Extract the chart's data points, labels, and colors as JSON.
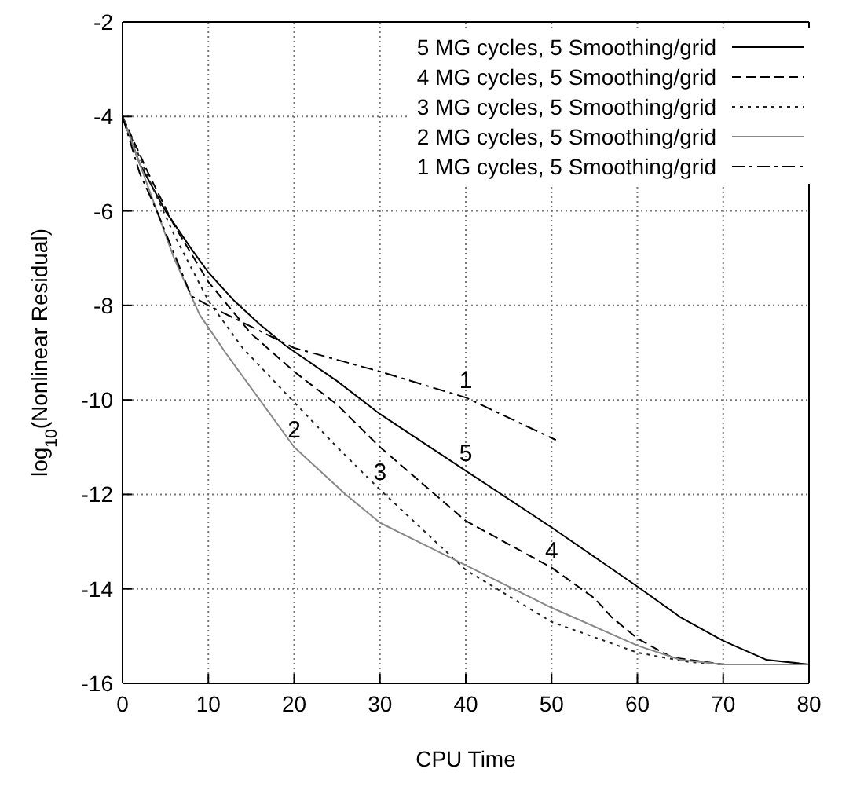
{
  "chart_data": {
    "type": "line",
    "xlabel": "CPU Time",
    "ylabel": "log$_{10}$(Nonlinear Residual)",
    "xlim": [
      0,
      80
    ],
    "xticks": [
      0,
      10,
      20,
      30,
      40,
      50,
      60,
      70,
      80
    ],
    "ylim": [
      -16,
      -2
    ],
    "yticks": [
      -16,
      -14,
      -12,
      -10,
      -8,
      -6,
      -4,
      -2
    ],
    "grid": true,
    "legend": "top right",
    "marker": "none",
    "series": [
      {
        "name": "5 MG cycles, 5 Smoothing/grid",
        "color": "#000000",
        "line_style": "solid",
        "x": [
          0,
          2,
          5,
          8,
          10,
          13,
          16,
          19,
          25,
          30,
          40,
          50,
          60,
          65,
          70,
          75,
          80
        ],
        "values": [
          -4,
          -5,
          -6,
          -6.8,
          -7.3,
          -7.9,
          -8.4,
          -8.85,
          -9.6,
          -10.3,
          -11.5,
          -12.7,
          -13.95,
          -14.6,
          -15.1,
          -15.5,
          -15.6
        ]
      },
      {
        "name": "4 MG cycles, 5 Smoothing/grid",
        "color": "#000000",
        "line_style": "dashed",
        "x": [
          0,
          3,
          6,
          10,
          15,
          20,
          25,
          30,
          40,
          50,
          55,
          57,
          60,
          64,
          70,
          80
        ],
        "values": [
          -4,
          -5.2,
          -6.3,
          -7.5,
          -8.6,
          -9.4,
          -10.1,
          -11,
          -12.56,
          -13.55,
          -14.2,
          -14.6,
          -15.05,
          -15.45,
          -15.6,
          -15.6
        ]
      },
      {
        "name": "3 MG cycles, 5 Smoothing/grid",
        "color": "#222222",
        "line_style": "dotted",
        "x": [
          0,
          3,
          6,
          10,
          14,
          20,
          25,
          30,
          40,
          50,
          60,
          66,
          70,
          80
        ],
        "values": [
          -4,
          -5.3,
          -6.5,
          -7.9,
          -8.9,
          -10.05,
          -11,
          -11.9,
          -13.6,
          -14.7,
          -15.35,
          -15.55,
          -15.6,
          -15.6
        ]
      },
      {
        "name": "2 MG cycles, 5 Smoothing/grid",
        "color": "#888888",
        "line_style": "solid",
        "x": [
          0,
          3,
          6,
          9,
          12,
          16,
          20,
          26,
          30,
          40,
          50,
          60,
          65,
          70,
          80
        ],
        "values": [
          -4,
          -5.5,
          -7,
          -8.2,
          -9,
          -10,
          -11,
          -12,
          -12.6,
          -13.5,
          -14.4,
          -15.2,
          -15.5,
          -15.6,
          -15.6
        ]
      },
      {
        "name": "1 MG cycles, 5 Smoothing/grid",
        "color": "#000000",
        "line_style": "dashdot",
        "x": [
          0,
          2,
          4,
          6,
          8,
          10,
          20,
          30,
          40,
          50.5
        ],
        "values": [
          -4,
          -5.2,
          -6,
          -6.9,
          -7.8,
          -8,
          -8.9,
          -9.4,
          -9.95,
          -10.85
        ]
      }
    ],
    "annotations": [
      {
        "text": "1",
        "x": 40,
        "y": -9.95
      },
      {
        "text": "5",
        "x": 40,
        "y": -11.5
      },
      {
        "text": "2",
        "x": 20,
        "y": -11
      },
      {
        "text": "3",
        "x": 30,
        "y": -11.9
      },
      {
        "text": "4",
        "x": 50,
        "y": -13.55
      }
    ]
  }
}
